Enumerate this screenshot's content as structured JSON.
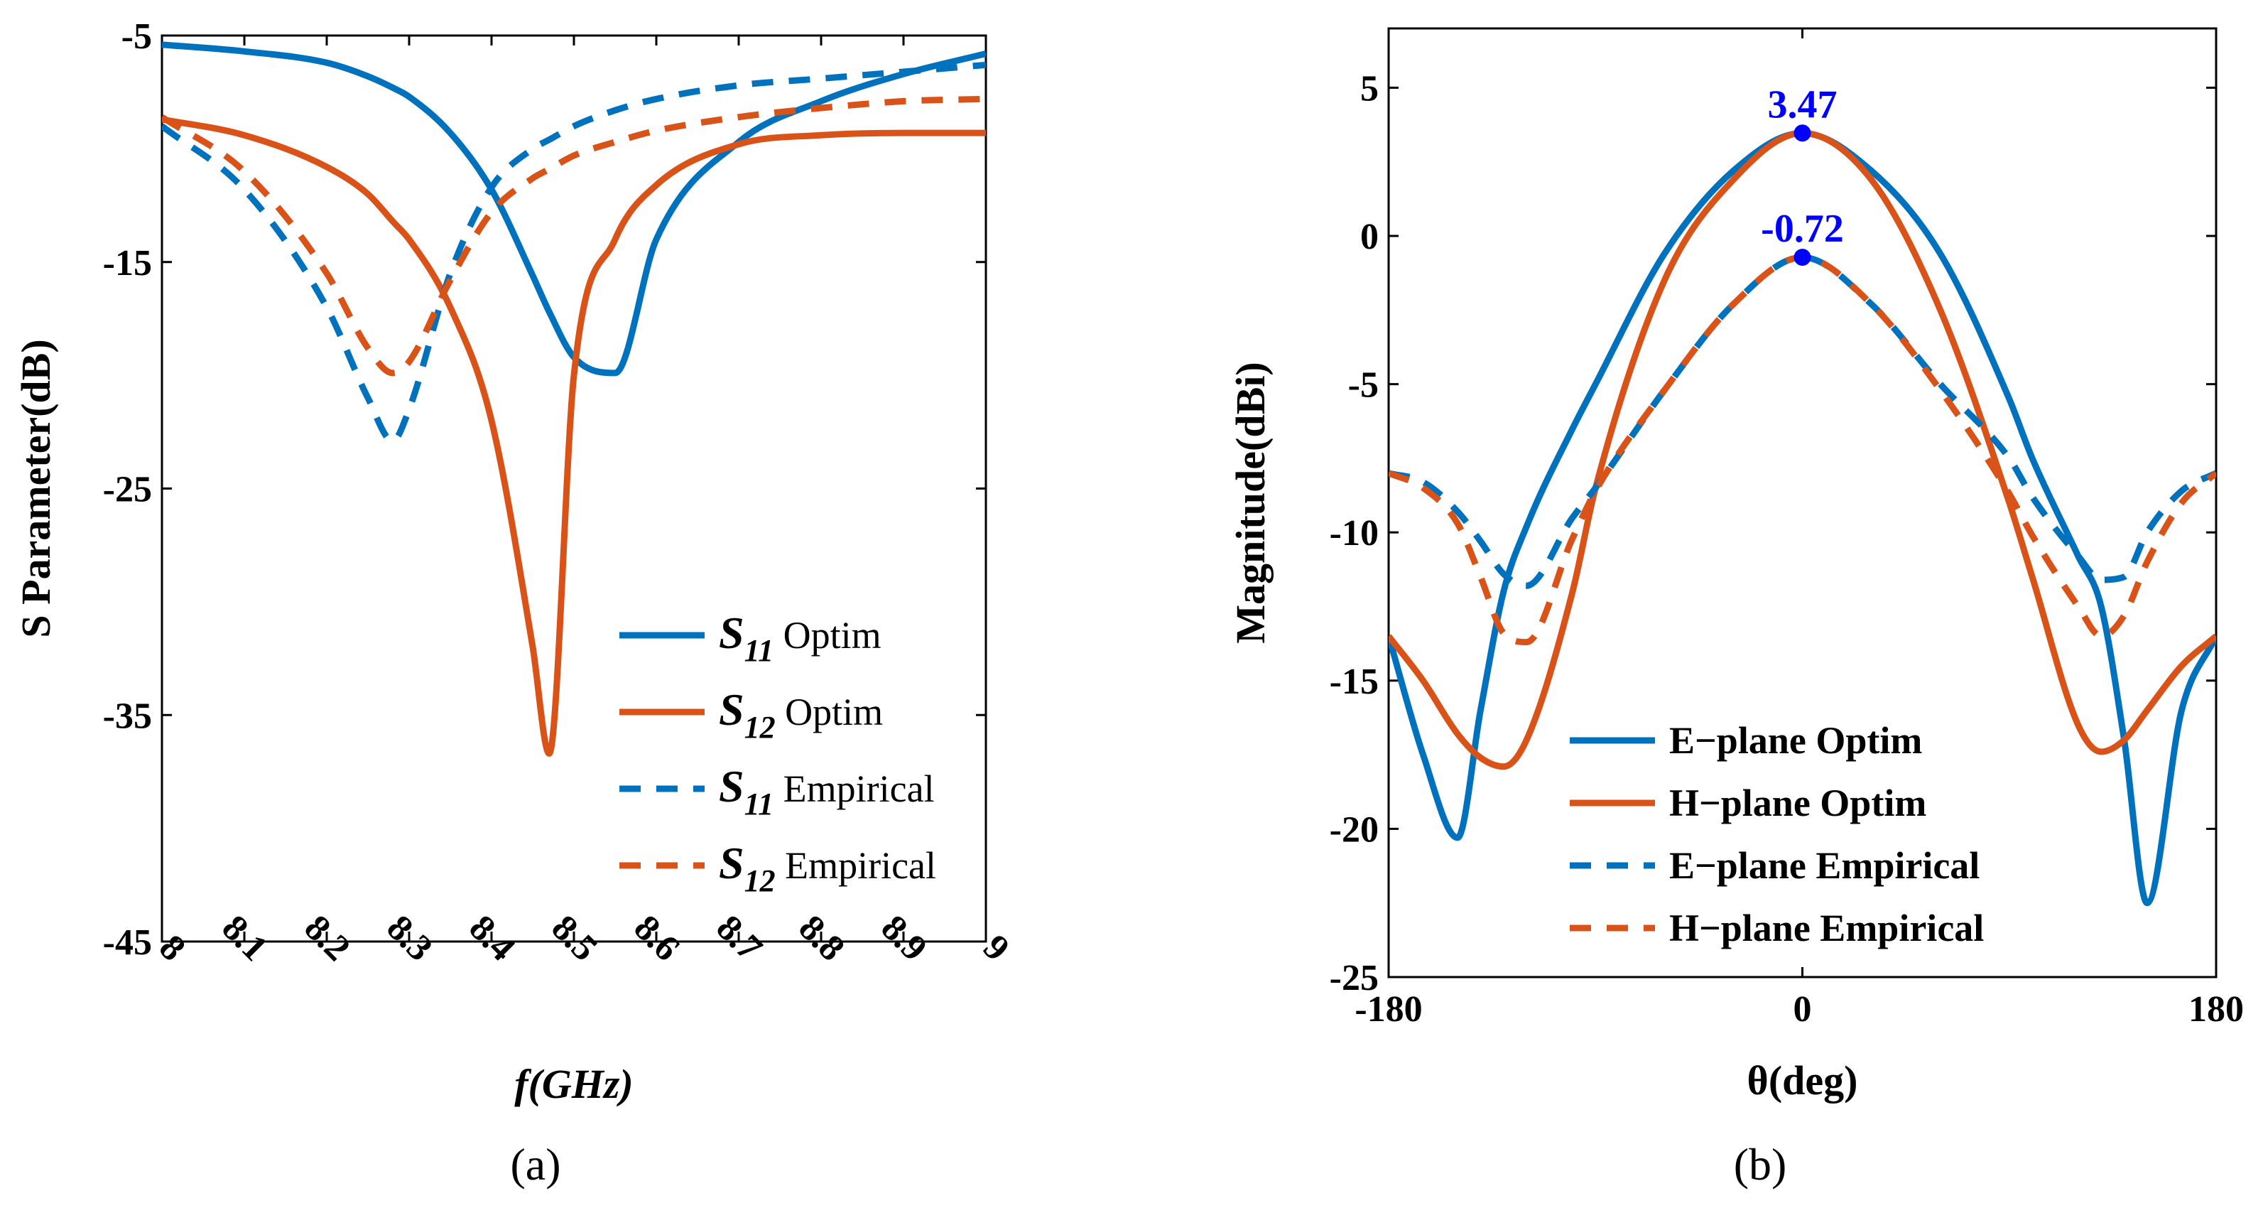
{
  "colors": {
    "blue": "#0072bd",
    "orange": "#d95319",
    "marker": "#0000ff"
  },
  "chart_data": [
    {
      "type": "line",
      "panel_label": "(a)",
      "xlabel": "f(GHz)",
      "ylabel": "S Parameter(dB)",
      "xlim": [
        8,
        9
      ],
      "ylim": [
        -45,
        -5
      ],
      "xticks": [
        "8",
        "8.1",
        "8.2",
        "8.3",
        "8.4",
        "8.5",
        "8.6",
        "8.7",
        "8.8",
        "8.9",
        "9"
      ],
      "yticks": [
        "-5",
        "-15",
        "-25",
        "-35",
        "-45"
      ],
      "x": [
        8.0,
        8.1,
        8.2,
        8.25,
        8.28,
        8.3,
        8.35,
        8.4,
        8.45,
        8.47,
        8.5,
        8.55,
        8.6,
        8.7,
        8.8,
        8.9,
        9.0
      ],
      "series": [
        {
          "name": "S11 Optim",
          "sym": "S",
          "sub": "11",
          "suffix": " Optim",
          "color": "blue",
          "dash": false,
          "values": [
            -5.4,
            -5.7,
            -6.2,
            -6.8,
            -7.3,
            -7.7,
            -9.3,
            -11.8,
            -15.6,
            -17.2,
            -19.2,
            -19.9,
            -14.0,
            -9.7,
            -7.9,
            -6.7,
            -5.8
          ]
        },
        {
          "name": "S12 Optim",
          "sym": "S",
          "sub": "12",
          "suffix": " Optim",
          "color": "orange",
          "dash": false,
          "values": [
            -8.7,
            -9.4,
            -10.8,
            -12.0,
            -13.2,
            -14.0,
            -17.0,
            -22.0,
            -32.0,
            -36.7,
            -20.0,
            -14.0,
            -11.6,
            -9.8,
            -9.4,
            -9.3,
            -9.3
          ]
        },
        {
          "name": "S11 Empirical",
          "sym": "S",
          "sub": "11",
          "suffix": " Empirical",
          "color": "blue",
          "dash": true,
          "values": [
            -9.0,
            -11.8,
            -17.0,
            -21.0,
            -22.9,
            -21.5,
            -15.5,
            -11.7,
            -10.0,
            -9.6,
            -9.0,
            -8.3,
            -7.8,
            -7.2,
            -6.9,
            -6.6,
            -6.3
          ]
        },
        {
          "name": "S12 Empirical",
          "sym": "S",
          "sub": "12",
          "suffix": " Empirical",
          "color": "orange",
          "dash": true,
          "values": [
            -8.6,
            -11.0,
            -15.5,
            -18.8,
            -19.9,
            -19.4,
            -15.8,
            -12.8,
            -11.3,
            -10.9,
            -10.3,
            -9.7,
            -9.2,
            -8.6,
            -8.2,
            -7.9,
            -7.8
          ]
        }
      ]
    },
    {
      "type": "line",
      "panel_label": "(b)",
      "xlabel": "θ(deg)",
      "ylabel": "Magnitude(dBi)",
      "xlim": [
        -180,
        180
      ],
      "ylim": [
        -25,
        7
      ],
      "xticks": [
        "-180",
        "0",
        "180"
      ],
      "yticks": [
        "5",
        "0",
        "-5",
        "-10",
        "-15",
        "-20",
        "-25"
      ],
      "x": [
        -180,
        -165,
        -150,
        -140,
        -130,
        -120,
        -100,
        -90,
        -60,
        -30,
        0,
        30,
        60,
        90,
        100,
        120,
        130,
        140,
        150,
        165,
        180
      ],
      "series": [
        {
          "name": "E−plane Optim",
          "color": "blue",
          "dash": false,
          "values": [
            -13.5,
            -17.5,
            -20.3,
            -16.0,
            -12.0,
            -9.8,
            -6.5,
            -5.0,
            -0.6,
            2.2,
            3.47,
            2.2,
            -0.6,
            -5.5,
            -7.5,
            -10.8,
            -12.5,
            -17.0,
            -22.5,
            -16.0,
            -13.5
          ]
        },
        {
          "name": "H−plane Optim",
          "color": "orange",
          "dash": false,
          "values": [
            -13.5,
            -15.0,
            -16.8,
            -17.6,
            -17.9,
            -17.0,
            -12.0,
            -8.5,
            -1.5,
            1.9,
            3.47,
            1.9,
            -2.5,
            -9.0,
            -11.5,
            -16.5,
            -17.4,
            -17.0,
            -16.0,
            -14.5,
            -13.5
          ]
        },
        {
          "name": "E−plane Empirical",
          "color": "blue",
          "dash": true,
          "values": [
            -8.0,
            -8.3,
            -9.3,
            -10.3,
            -11.4,
            -11.8,
            -9.5,
            -8.5,
            -5.2,
            -2.3,
            -0.72,
            -2.3,
            -5.0,
            -7.5,
            -8.8,
            -10.8,
            -11.6,
            -11.5,
            -10.0,
            -8.6,
            -8.0
          ]
        },
        {
          "name": "H−plane Empirical",
          "color": "orange",
          "dash": true,
          "values": [
            -8.0,
            -8.5,
            -9.7,
            -11.5,
            -13.4,
            -13.7,
            -10.2,
            -8.6,
            -5.2,
            -2.3,
            -0.72,
            -2.3,
            -5.2,
            -8.7,
            -10.1,
            -12.5,
            -13.5,
            -12.8,
            -11.0,
            -9.0,
            -8.0
          ]
        }
      ],
      "annotations": [
        {
          "x": 0,
          "y": 3.47,
          "text": "3.47"
        },
        {
          "x": 0,
          "y": -0.72,
          "text": "-0.72"
        }
      ]
    }
  ]
}
